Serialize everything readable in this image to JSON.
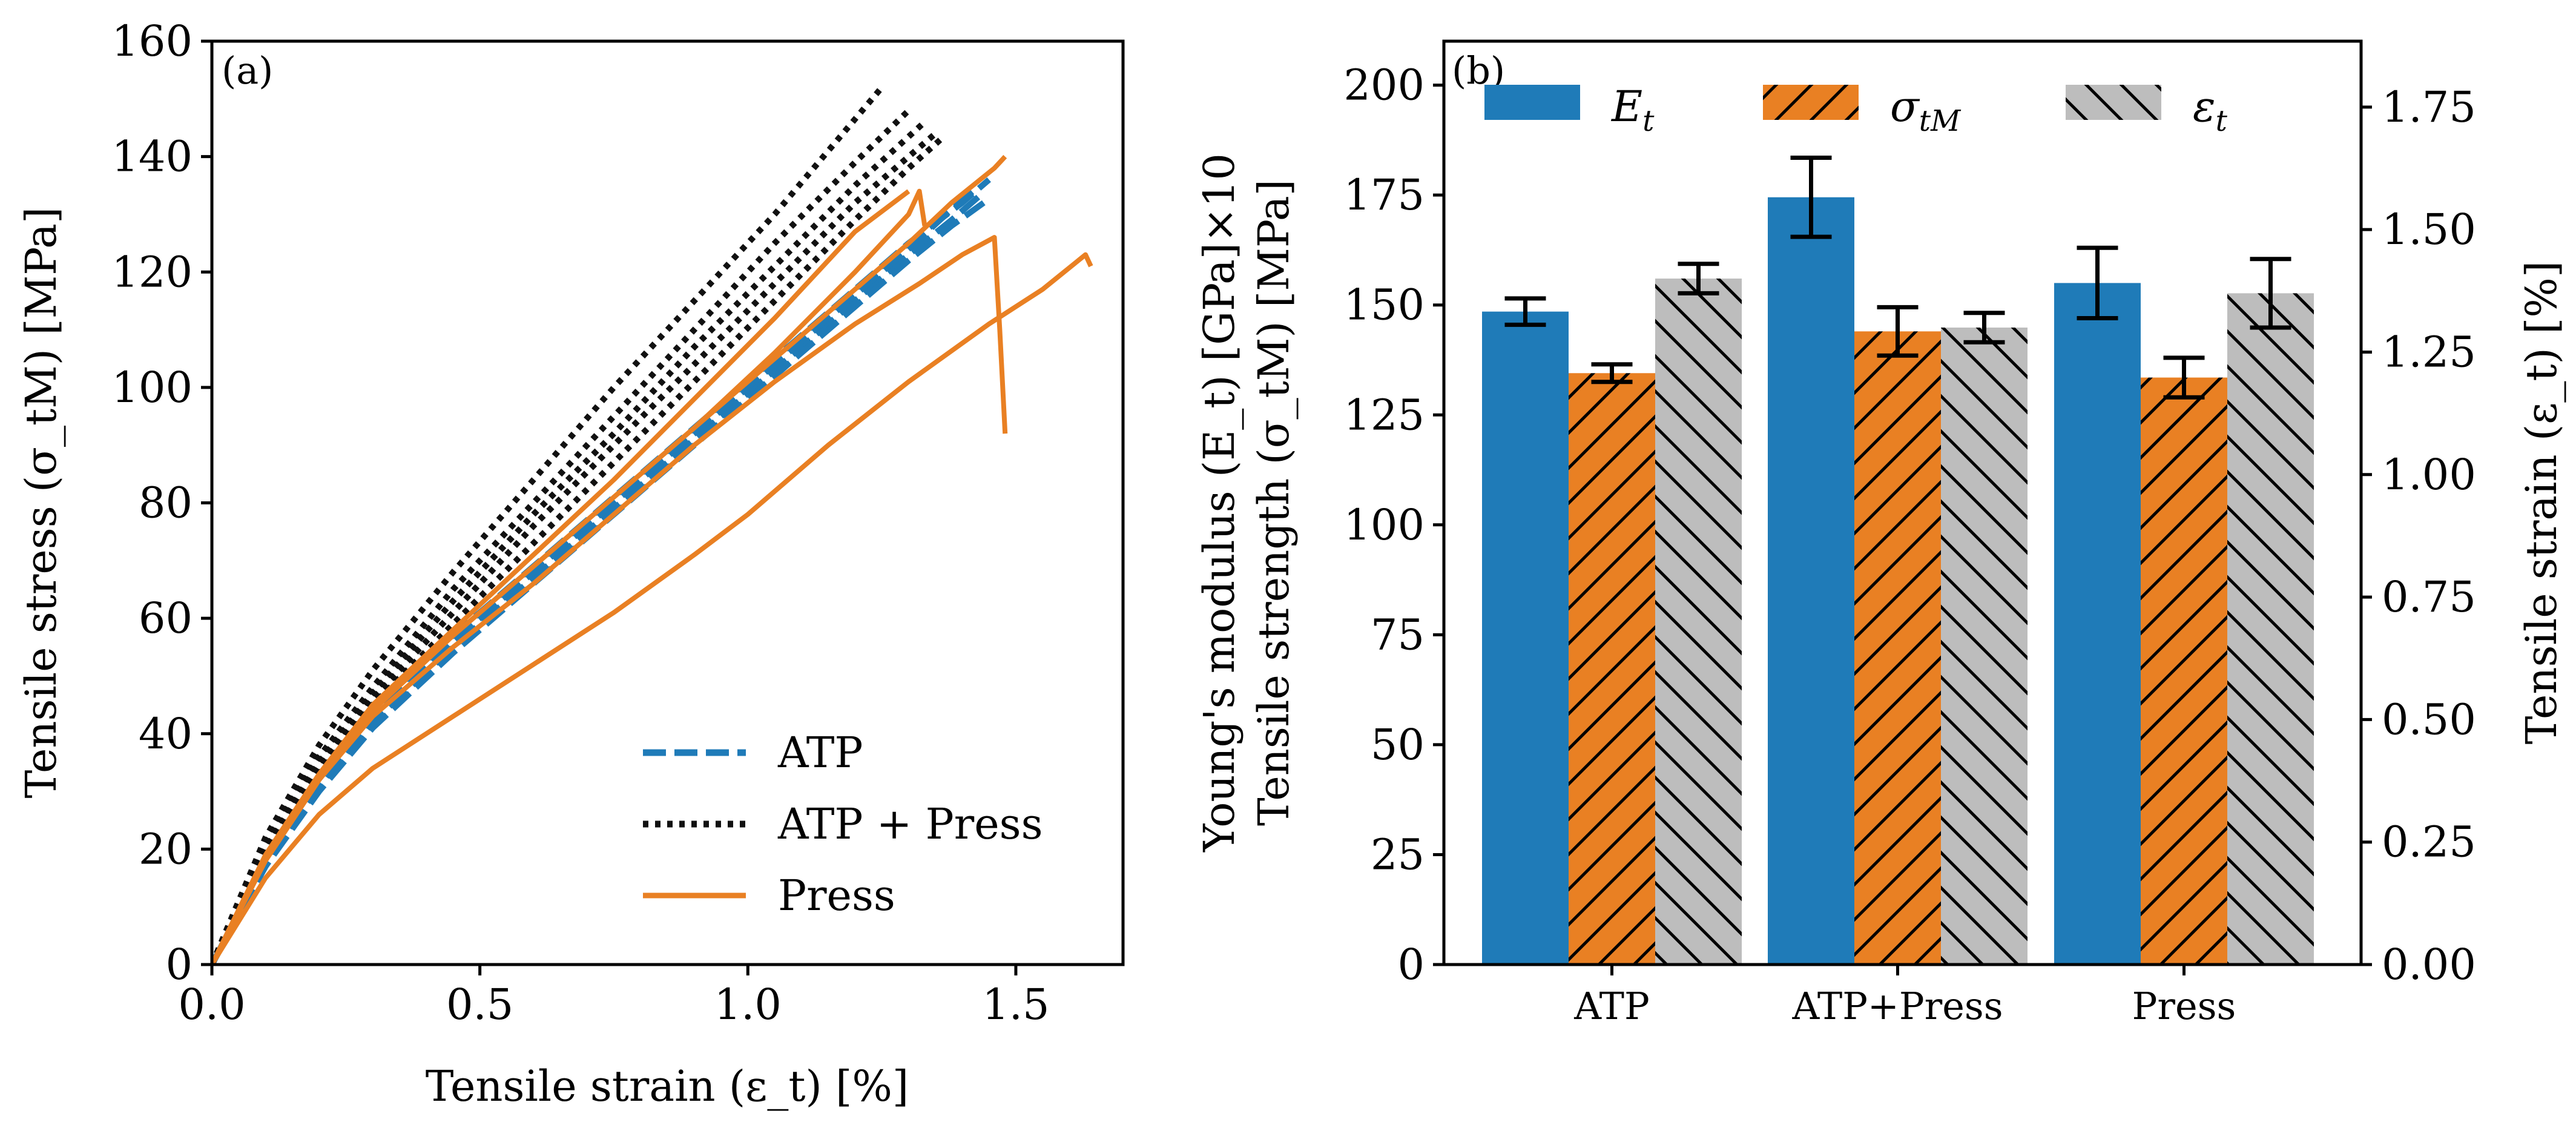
{
  "chart_data": [
    {
      "type": "line",
      "panel_label": "(a)",
      "xlabel": "Tensile strain (ε_t) [%]",
      "ylabel": "Tensile stress (σ_tM) [MPa]",
      "xlim": [
        0,
        1.7
      ],
      "ylim": [
        0,
        160
      ],
      "xticks": [
        0.0,
        0.5,
        1.0,
        1.5
      ],
      "xtick_labels": [
        "0.0",
        "0.5",
        "1.0",
        "1.5"
      ],
      "yticks": [
        0,
        20,
        40,
        60,
        80,
        100,
        120,
        140,
        160
      ],
      "ytick_labels": [
        "0",
        "20",
        "40",
        "60",
        "80",
        "100",
        "120",
        "140",
        "160"
      ],
      "legend_location": "bottom-right",
      "legend": [
        "ATP",
        "ATP + Press",
        "Press"
      ],
      "series": [
        {
          "name": "ATP",
          "style": "dashed",
          "color": "#1f7bb8",
          "x": [
            0,
            0.1,
            0.2,
            0.3,
            0.45,
            0.6,
            0.75,
            0.9,
            1.05,
            1.2,
            1.3,
            1.38,
            1.43
          ],
          "y": [
            0,
            17,
            31,
            42,
            55,
            67,
            79,
            91,
            103,
            115,
            123,
            129,
            133
          ]
        },
        {
          "name": "ATP",
          "style": "dashed",
          "color": "#1f7bb8",
          "x": [
            0,
            0.1,
            0.2,
            0.3,
            0.45,
            0.6,
            0.75,
            0.9,
            1.05,
            1.2,
            1.3,
            1.4,
            1.45
          ],
          "y": [
            0,
            18,
            32,
            44,
            57,
            69,
            81,
            93,
            105,
            117,
            125,
            132,
            136
          ]
        },
        {
          "name": "ATP",
          "style": "dashed",
          "color": "#1f7bb8",
          "x": [
            0,
            0.1,
            0.2,
            0.3,
            0.45,
            0.6,
            0.75,
            0.9,
            1.05,
            1.2,
            1.3,
            1.38,
            1.44
          ],
          "y": [
            0,
            17,
            30,
            41,
            54,
            66,
            78,
            90,
            102,
            114,
            122,
            128,
            132
          ]
        },
        {
          "name": "ATP",
          "style": "dashed",
          "color": "#1f7bb8",
          "x": [
            0,
            0.1,
            0.2,
            0.3,
            0.45,
            0.6,
            0.75,
            0.9,
            1.05,
            1.2,
            1.3,
            1.37,
            1.42
          ],
          "y": [
            0,
            18,
            31,
            43,
            56,
            68,
            80,
            92,
            104,
            116,
            124,
            130,
            134
          ]
        },
        {
          "name": "ATP + Press",
          "style": "dotted",
          "color": "#111111",
          "x": [
            0,
            0.1,
            0.2,
            0.3,
            0.45,
            0.6,
            0.75,
            0.9,
            1.05,
            1.25
          ],
          "y": [
            0,
            22,
            38,
            51,
            68,
            84,
            100,
            115,
            130,
            152
          ]
        },
        {
          "name": "ATP + Press",
          "style": "dotted",
          "color": "#111111",
          "x": [
            0,
            0.1,
            0.2,
            0.3,
            0.45,
            0.6,
            0.75,
            0.9,
            1.05,
            1.2,
            1.3
          ],
          "y": [
            0,
            21,
            36,
            48,
            65,
            80,
            95,
            110,
            125,
            139,
            148
          ]
        },
        {
          "name": "ATP + Press",
          "style": "dotted",
          "color": "#111111",
          "x": [
            0,
            0.1,
            0.2,
            0.3,
            0.45,
            0.6,
            0.75,
            0.9,
            1.05,
            1.2,
            1.33
          ],
          "y": [
            0,
            20,
            35,
            47,
            63,
            78,
            92,
            107,
            121,
            135,
            146
          ]
        },
        {
          "name": "ATP + Press",
          "style": "dotted",
          "color": "#111111",
          "x": [
            0,
            0.1,
            0.2,
            0.3,
            0.45,
            0.6,
            0.75,
            0.9,
            1.05,
            1.2,
            1.35
          ],
          "y": [
            0,
            20,
            34,
            46,
            61,
            76,
            90,
            104,
            118,
            132,
            144
          ]
        },
        {
          "name": "ATP + Press",
          "style": "dotted",
          "color": "#111111",
          "x": [
            0,
            0.1,
            0.2,
            0.3,
            0.45,
            0.6,
            0.75,
            0.9,
            1.05,
            1.2,
            1.3,
            1.36
          ],
          "y": [
            0,
            19,
            33,
            45,
            59,
            73,
            87,
            101,
            115,
            129,
            138,
            143
          ]
        },
        {
          "name": "Press",
          "style": "solid",
          "color": "#e98023",
          "x": [
            0,
            0.1,
            0.2,
            0.3,
            0.45,
            0.6,
            0.75,
            0.9,
            1.05,
            1.2,
            1.3,
            1.38,
            1.46,
            1.48
          ],
          "y": [
            0,
            19,
            33,
            45,
            57,
            69,
            81,
            93,
            105,
            117,
            125,
            132,
            138,
            140
          ]
        },
        {
          "name": "Press",
          "style": "solid",
          "color": "#e98023",
          "x": [
            0,
            0.1,
            0.2,
            0.3,
            0.45,
            0.6,
            0.75,
            0.9,
            1.05,
            1.2,
            1.32,
            1.4,
            1.46,
            1.47,
            1.48
          ],
          "y": [
            0,
            18,
            32,
            43,
            55,
            66,
            78,
            90,
            101,
            111,
            118,
            123,
            126,
            110,
            92
          ]
        },
        {
          "name": "Press",
          "style": "solid",
          "color": "#e98023",
          "x": [
            0,
            0.1,
            0.2,
            0.3,
            0.45,
            0.6,
            0.75,
            0.9,
            1.0,
            1.15,
            1.3,
            1.45,
            1.55,
            1.63,
            1.64
          ],
          "y": [
            0,
            15,
            26,
            34,
            43,
            52,
            61,
            71,
            78,
            90,
            101,
            111,
            117,
            123,
            121
          ]
        },
        {
          "name": "Press",
          "style": "solid",
          "color": "#e98023",
          "x": [
            0,
            0.1,
            0.2,
            0.3,
            0.45,
            0.6,
            0.75,
            0.9,
            1.05,
            1.2,
            1.3
          ],
          "y": [
            0,
            18,
            32,
            45,
            58,
            71,
            84,
            98,
            112,
            127,
            134
          ]
        },
        {
          "name": "Press",
          "style": "solid",
          "color": "#e98023",
          "x": [
            0,
            0.1,
            0.2,
            0.3,
            0.45,
            0.6,
            0.75,
            0.9,
            1.05,
            1.2,
            1.3,
            1.32,
            1.33
          ],
          "y": [
            0,
            18,
            32,
            44,
            57,
            69,
            81,
            93,
            106,
            120,
            130,
            134,
            128
          ]
        }
      ]
    },
    {
      "type": "bar",
      "panel_label": "(b)",
      "categories": [
        "ATP",
        "ATP+Press",
        "Press"
      ],
      "ylabel_line1": "Young's modulus (E_t) [GPa]×10",
      "ylabel_line2": "Tensile strength (σ_tM) [MPa]",
      "y2label": "Tensile strain (ε_t) [%]",
      "ylim": [
        0,
        210
      ],
      "y2lim": [
        0,
        1.8845
      ],
      "yticks": [
        0,
        25,
        50,
        75,
        100,
        125,
        150,
        175,
        200
      ],
      "ytick_labels": [
        "0",
        "25",
        "50",
        "75",
        "100",
        "125",
        "150",
        "175",
        "200"
      ],
      "y2ticks": [
        0.0,
        0.25,
        0.5,
        0.75,
        1.0,
        1.25,
        1.5,
        1.75
      ],
      "y2tick_labels": [
        "0.00",
        "0.25",
        "0.50",
        "0.75",
        "1.00",
        "1.25",
        "1.50",
        "1.75"
      ],
      "legend_location": "top",
      "series": [
        {
          "name": "E_t",
          "legend_main": "E",
          "legend_sub": "t",
          "axis": "left",
          "color": "#1f7bb8",
          "hatch": "none",
          "values": [
            148.5,
            174.5,
            155.0
          ],
          "errors": [
            3.0,
            9.0,
            8.0
          ]
        },
        {
          "name": "σ_tM",
          "legend_main": "σ",
          "legend_sub": "tM",
          "axis": "left",
          "color": "#e98023",
          "hatch": "slash",
          "values": [
            134.5,
            144.0,
            133.5
          ],
          "errors": [
            2.0,
            5.5,
            4.5
          ]
        },
        {
          "name": "ε_t",
          "legend_main": "ε",
          "legend_sub": "t",
          "axis": "right",
          "color": "#bdbdbd",
          "hatch": "backslash",
          "values": [
            1.4,
            1.3,
            1.37
          ],
          "errors": [
            0.03,
            0.03,
            0.07
          ]
        }
      ]
    }
  ]
}
